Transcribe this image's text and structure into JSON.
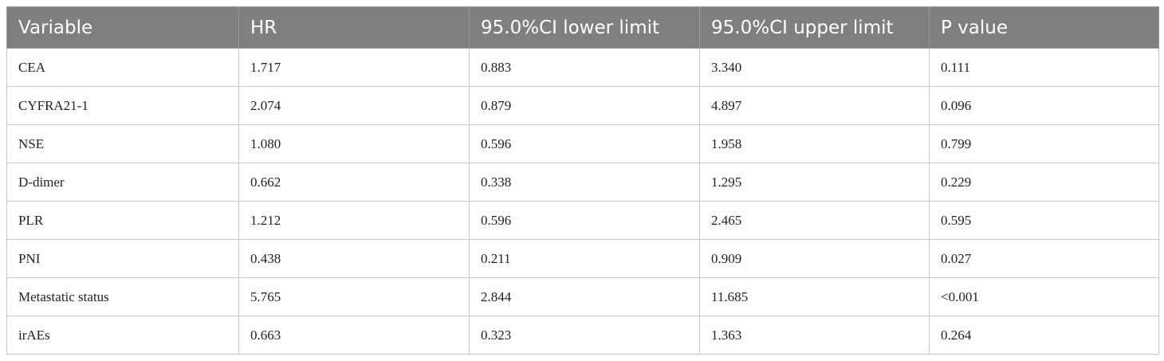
{
  "table": {
    "header": [
      "Variable",
      "HR",
      "95.0%CI lower limit",
      "95.0%CI upper limit",
      "P value"
    ],
    "rows": [
      [
        "CEA",
        "1.717",
        "0.883",
        "3.340",
        "0.111"
      ],
      [
        "CYFRA21-1",
        "2.074",
        "0.879",
        "4.897",
        "0.096"
      ],
      [
        "NSE",
        "1.080",
        "0.596",
        "1.958",
        "0.799"
      ],
      [
        "D-dimer",
        "0.662",
        "0.338",
        "1.295",
        "0.229"
      ],
      [
        "PLR",
        "1.212",
        "0.596",
        "2.465",
        "0.595"
      ],
      [
        "PNI",
        "0.438",
        "0.211",
        "0.909",
        "0.027"
      ],
      [
        "Metastatic status",
        "5.765",
        "2.844",
        "11.685",
        "<0.001"
      ],
      [
        "irAEs",
        "0.663",
        "0.323",
        "1.363",
        "0.264"
      ]
    ]
  }
}
